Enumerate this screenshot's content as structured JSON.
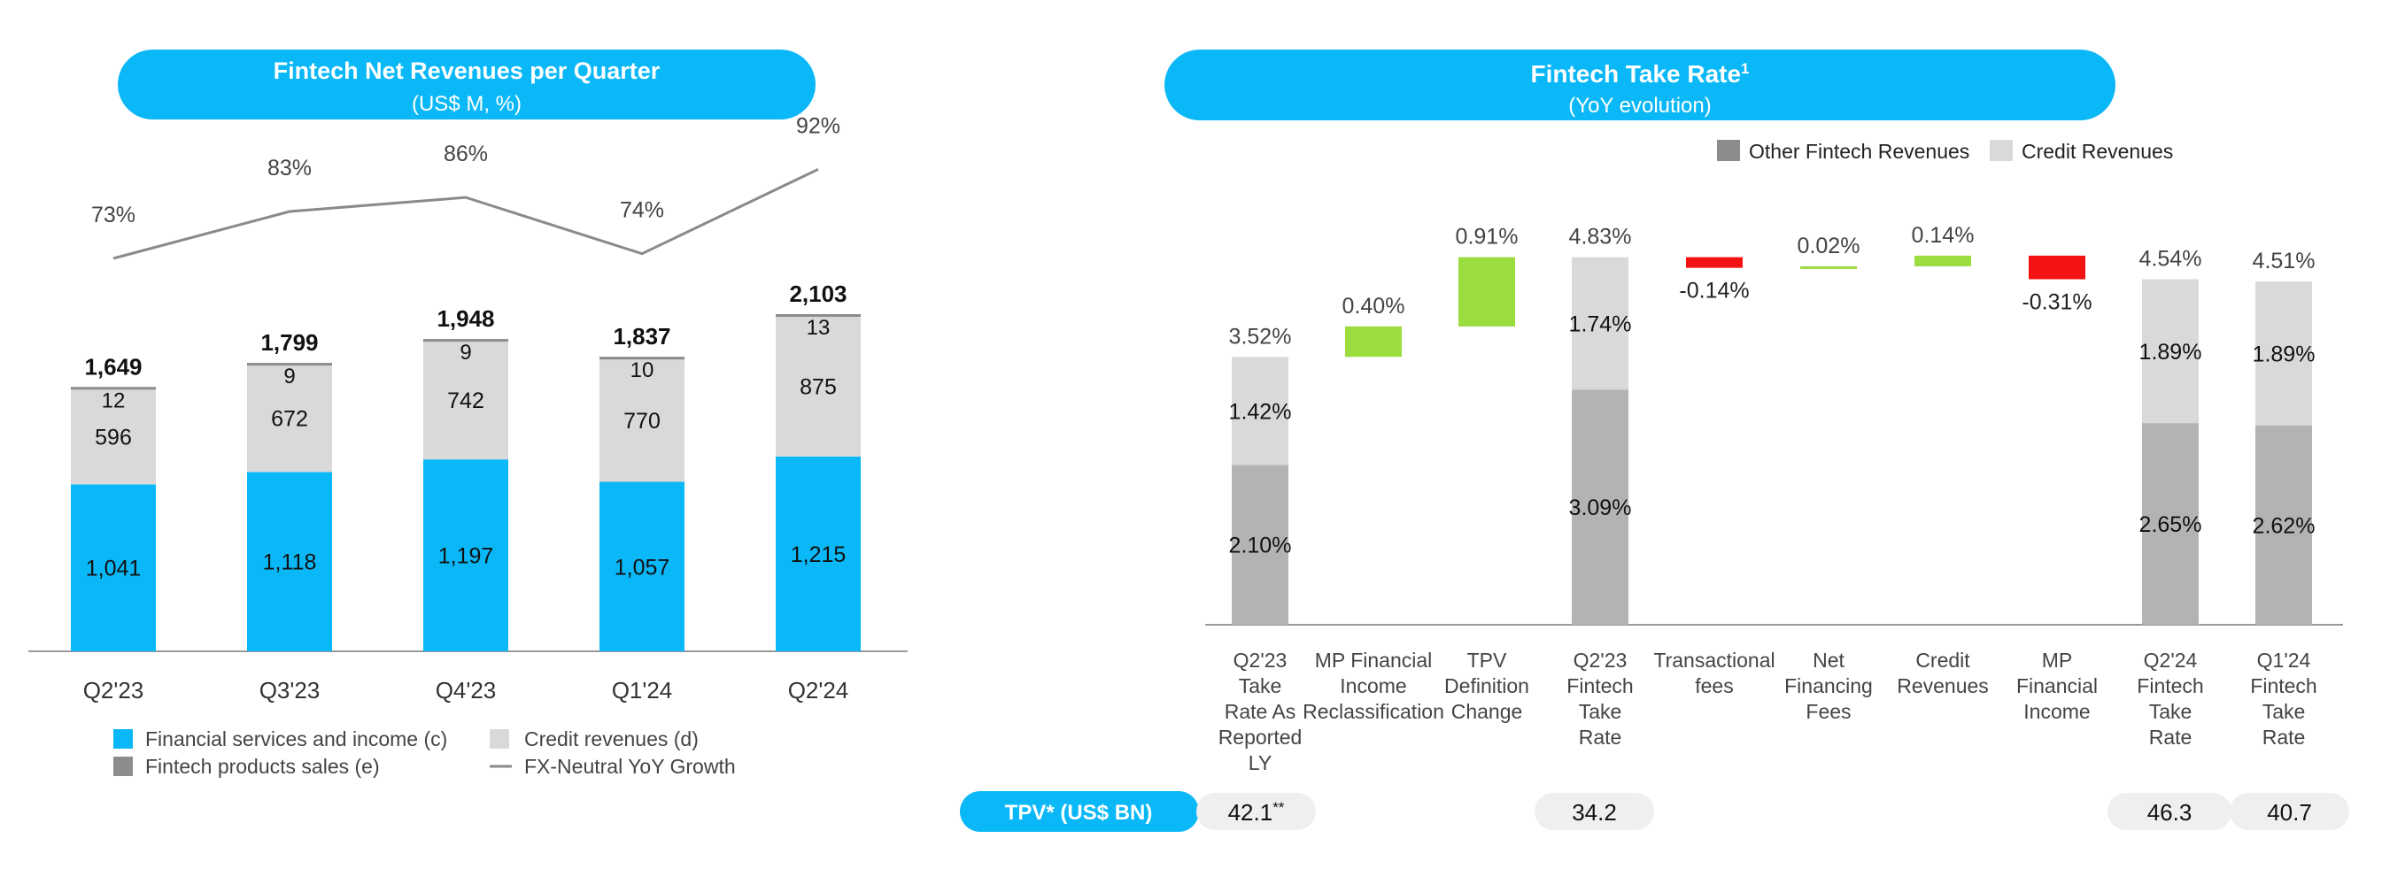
{
  "colors": {
    "brand_blue": "#0ab8f7",
    "credit_gray": "#d9d9d9",
    "products_gray": "#8c8c8c",
    "other_fintech_gray": "#b3b3b3",
    "positive_green": "#9bdc3f",
    "negative_red": "#f51212",
    "line_gray": "#8a8a8a",
    "pill_gray": "#efefef",
    "axis_gray": "#9a9a9a",
    "text_dark": "#111111",
    "text_mid": "#444444"
  },
  "left_chart": {
    "title": "Fintech Net Revenues per Quarter",
    "subtitle": "(US$ M, %)",
    "legend": {
      "financial_services": "Financial services and income (c)",
      "fintech_products": "Fintech products sales (e)",
      "credit_revenues": "Credit revenues (d)",
      "yoy_growth": "FX-Neutral YoY Growth"
    }
  },
  "right_chart": {
    "title": "Fintech Take Rate",
    "title_sup": "1",
    "subtitle": "(YoY evolution)",
    "legend": {
      "other_fintech": "Other Fintech Revenues",
      "credit": "Credit Revenues"
    },
    "tpv_label": "TPV* (US$ BN)"
  },
  "chart_data": [
    {
      "type": "bar",
      "stacked": true,
      "title": "Fintech Net Revenues per Quarter",
      "subtitle": "(US$ M, %)",
      "categories": [
        "Q2'23",
        "Q3'23",
        "Q4'23",
        "Q1'24",
        "Q2'24"
      ],
      "series": [
        {
          "name": "Financial services and income (c)",
          "values": [
            1041,
            1118,
            1197,
            1057,
            1215
          ],
          "labels": [
            "1,041",
            "1,118",
            "1,197",
            "1,057",
            "1,215"
          ]
        },
        {
          "name": "Credit revenues (d)",
          "values": [
            596,
            672,
            742,
            770,
            875
          ],
          "labels": [
            "596",
            "672",
            "742",
            "770",
            "875"
          ]
        },
        {
          "name": "Fintech products sales (e)",
          "values": [
            12,
            9,
            9,
            10,
            13
          ],
          "labels": [
            "12",
            "9",
            "9",
            "10",
            "13"
          ]
        }
      ],
      "totals": [
        1649,
        1799,
        1948,
        1837,
        2103
      ],
      "total_labels": [
        "1,649",
        "1,799",
        "1,948",
        "1,837",
        "2,103"
      ],
      "line_series": {
        "name": "FX-Neutral YoY Growth",
        "values": [
          73,
          83,
          86,
          74,
          92
        ],
        "labels": [
          "73%",
          "83%",
          "86%",
          "74%",
          "92%"
        ]
      },
      "ylim": [
        0,
        2103
      ]
    },
    {
      "type": "bar",
      "waterfall": true,
      "title": "Fintech Take Rate",
      "subtitle": "(YoY evolution)",
      "categories": [
        "Q2'23 Take Rate As Reported LY",
        "MP Financial Income Reclassification",
        "TPV Definition Change",
        "Q2'23 Fintech Take Rate",
        "Transactional fees",
        "Net Financing Fees",
        "Credit Revenues",
        "MP Financial Income",
        "Q2'24 Fintech Take Rate",
        "Q1'24 Fintech Take Rate"
      ],
      "category_lines": [
        [
          "Q2'23",
          "Take",
          "Rate As",
          "Reported",
          "LY"
        ],
        [
          "MP Financial",
          "Income",
          "Reclassification"
        ],
        [
          "TPV",
          "Definition",
          "Change"
        ],
        [
          "Q2'23",
          "Fintech",
          "Take",
          "Rate"
        ],
        [
          "Transactional",
          "fees"
        ],
        [
          "Net",
          "Financing",
          "Fees"
        ],
        [
          "Credit",
          "Revenues"
        ],
        [
          "MP",
          "Financial",
          "Income"
        ],
        [
          "Q2'24",
          "Fintech",
          "Take",
          "Rate"
        ],
        [
          "Q1'24",
          "Fintech",
          "Take",
          "Rate"
        ]
      ],
      "bars": [
        {
          "kind": "total",
          "value": 3.52,
          "label": "3.52%",
          "other_fintech": 2.1,
          "other_label": "2.10%",
          "credit": 1.42,
          "credit_label": "1.42%"
        },
        {
          "kind": "delta",
          "value": 0.4,
          "label": "0.40%",
          "from": 3.52,
          "to": 3.92
        },
        {
          "kind": "delta",
          "value": 0.91,
          "label": "0.91%",
          "from": 3.92,
          "to": 4.83
        },
        {
          "kind": "total",
          "value": 4.83,
          "label": "4.83%",
          "other_fintech": 3.09,
          "other_label": "3.09%",
          "credit": 1.74,
          "credit_label": "1.74%"
        },
        {
          "kind": "delta",
          "value": -0.14,
          "label": "-0.14%",
          "from": 4.83,
          "to": 4.69
        },
        {
          "kind": "delta",
          "value": 0.02,
          "label": "0.02%",
          "from": 4.69,
          "to": 4.71
        },
        {
          "kind": "delta",
          "value": 0.14,
          "label": "0.14%",
          "from": 4.71,
          "to": 4.85
        },
        {
          "kind": "delta",
          "value": -0.31,
          "label": "-0.31%",
          "from": 4.85,
          "to": 4.54
        },
        {
          "kind": "total",
          "value": 4.54,
          "label": "4.54%",
          "other_fintech": 2.65,
          "other_label": "2.65%",
          "credit": 1.89,
          "credit_label": "1.89%"
        },
        {
          "kind": "total",
          "value": 4.51,
          "label": "4.51%",
          "other_fintech": 2.62,
          "other_label": "2.62%",
          "credit": 1.89,
          "credit_label": "1.89%"
        }
      ],
      "legend": [
        "Other Fintech Revenues",
        "Credit Revenues"
      ],
      "tpv": {
        "label": "TPV* (US$ BN)",
        "values": [
          {
            "category": "Q2'23 Take Rate As Reported LY",
            "value": "42.1",
            "suffix": "**"
          },
          {
            "category": "Q2'23 Fintech Take Rate",
            "value": "34.2"
          },
          {
            "category": "Q2'24 Fintech Take Rate",
            "value": "46.3"
          },
          {
            "category": "Q1'24 Fintech Take Rate",
            "value": "40.7"
          }
        ]
      }
    }
  ]
}
